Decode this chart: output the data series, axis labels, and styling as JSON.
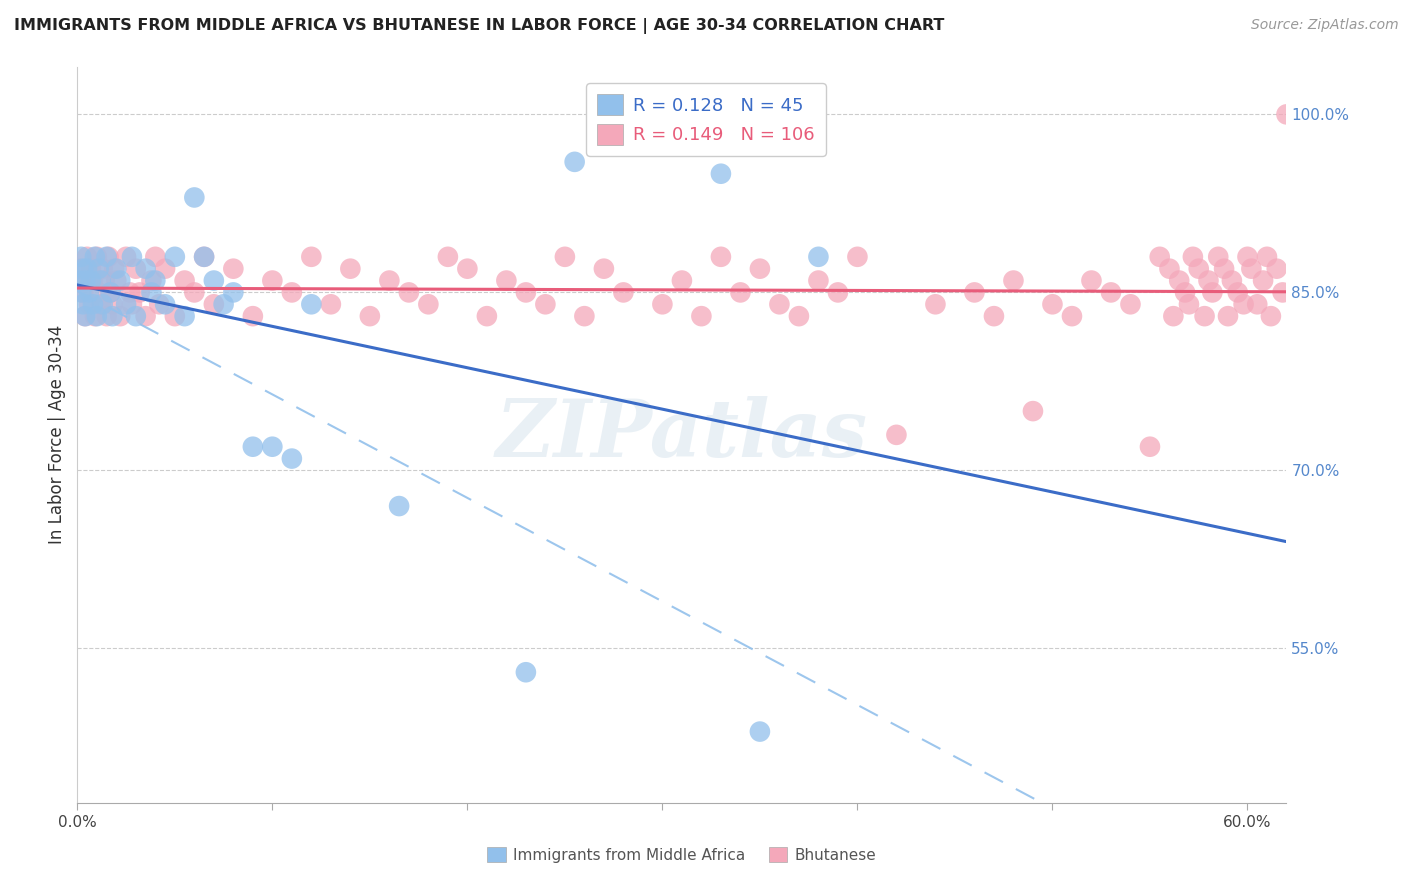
{
  "title": "IMMIGRANTS FROM MIDDLE AFRICA VS BHUTANESE IN LABOR FORCE | AGE 30-34 CORRELATION CHART",
  "source": "Source: ZipAtlas.com",
  "ylabel": "In Labor Force | Age 30-34",
  "blue_R": 0.128,
  "blue_N": 45,
  "pink_R": 0.149,
  "pink_N": 106,
  "blue_color": "#92C0EB",
  "pink_color": "#F4A8BA",
  "blue_line_color": "#3B6CC7",
  "pink_line_color": "#E85C7A",
  "blue_dashed_color": "#92C0EB",
  "legend_label_blue": "Immigrants from Middle Africa",
  "legend_label_pink": "Bhutanese",
  "ytick_vals": [
    0.55,
    0.7,
    0.85,
    1.0
  ],
  "ytick_labels": [
    "55.0%",
    "70.0%",
    "85.0%",
    "100.0%"
  ],
  "xtick_vals": [
    0.0,
    0.1,
    0.2,
    0.3,
    0.4,
    0.5,
    0.6
  ],
  "xtick_labels": [
    "0.0%",
    "",
    "",
    "",
    "",
    "",
    "60.0%"
  ],
  "xlim": [
    0.0,
    0.62
  ],
  "ylim": [
    0.42,
    1.04
  ],
  "watermark_text": "ZIPatlas",
  "background_color": "#ffffff",
  "blue_x": [
    0.001,
    0.002,
    0.002,
    0.003,
    0.003,
    0.004,
    0.004,
    0.005,
    0.006,
    0.007,
    0.008,
    0.009,
    0.01,
    0.011,
    0.012,
    0.013,
    0.015,
    0.017,
    0.018,
    0.02,
    0.022,
    0.025,
    0.028,
    0.03,
    0.035,
    0.038,
    0.04,
    0.045,
    0.05,
    0.055,
    0.06,
    0.065,
    0.07,
    0.075,
    0.08,
    0.09,
    0.1,
    0.11,
    0.12,
    0.165,
    0.23,
    0.255,
    0.33,
    0.35,
    0.38
  ],
  "blue_y": [
    0.86,
    0.85,
    0.88,
    0.84,
    0.87,
    0.86,
    0.83,
    0.87,
    0.85,
    0.86,
    0.84,
    0.88,
    0.83,
    0.87,
    0.86,
    0.84,
    0.88,
    0.85,
    0.83,
    0.87,
    0.86,
    0.84,
    0.88,
    0.83,
    0.87,
    0.85,
    0.86,
    0.84,
    0.88,
    0.83,
    0.93,
    0.88,
    0.86,
    0.84,
    0.85,
    0.72,
    0.72,
    0.71,
    0.84,
    0.67,
    0.53,
    0.96,
    0.95,
    0.48,
    0.88
  ],
  "pink_x": [
    0.001,
    0.002,
    0.003,
    0.004,
    0.005,
    0.006,
    0.007,
    0.008,
    0.009,
    0.01,
    0.011,
    0.012,
    0.013,
    0.014,
    0.015,
    0.016,
    0.017,
    0.018,
    0.019,
    0.02,
    0.022,
    0.025,
    0.027,
    0.028,
    0.03,
    0.032,
    0.035,
    0.038,
    0.04,
    0.042,
    0.045,
    0.05,
    0.055,
    0.06,
    0.065,
    0.07,
    0.08,
    0.09,
    0.1,
    0.11,
    0.12,
    0.13,
    0.14,
    0.15,
    0.16,
    0.17,
    0.18,
    0.19,
    0.2,
    0.21,
    0.22,
    0.23,
    0.24,
    0.25,
    0.26,
    0.27,
    0.28,
    0.3,
    0.31,
    0.32,
    0.33,
    0.34,
    0.35,
    0.36,
    0.37,
    0.38,
    0.39,
    0.4,
    0.42,
    0.44,
    0.46,
    0.47,
    0.48,
    0.49,
    0.5,
    0.51,
    0.52,
    0.53,
    0.54,
    0.55,
    0.555,
    0.56,
    0.562,
    0.565,
    0.568,
    0.57,
    0.572,
    0.575,
    0.578,
    0.58,
    0.582,
    0.585,
    0.588,
    0.59,
    0.592,
    0.595,
    0.598,
    0.6,
    0.602,
    0.605,
    0.608,
    0.61,
    0.612,
    0.615,
    0.618,
    0.62
  ],
  "pink_y": [
    0.87,
    0.86,
    0.85,
    0.83,
    0.88,
    0.84,
    0.87,
    0.86,
    0.83,
    0.88,
    0.85,
    0.84,
    0.87,
    0.86,
    0.83,
    0.88,
    0.85,
    0.84,
    0.87,
    0.86,
    0.83,
    0.88,
    0.85,
    0.84,
    0.87,
    0.85,
    0.83,
    0.86,
    0.88,
    0.84,
    0.87,
    0.83,
    0.86,
    0.85,
    0.88,
    0.84,
    0.87,
    0.83,
    0.86,
    0.85,
    0.88,
    0.84,
    0.87,
    0.83,
    0.86,
    0.85,
    0.84,
    0.88,
    0.87,
    0.83,
    0.86,
    0.85,
    0.84,
    0.88,
    0.83,
    0.87,
    0.85,
    0.84,
    0.86,
    0.83,
    0.88,
    0.85,
    0.87,
    0.84,
    0.83,
    0.86,
    0.85,
    0.88,
    0.73,
    0.84,
    0.85,
    0.83,
    0.86,
    0.75,
    0.84,
    0.83,
    0.86,
    0.85,
    0.84,
    0.72,
    0.88,
    0.87,
    0.83,
    0.86,
    0.85,
    0.84,
    0.88,
    0.87,
    0.83,
    0.86,
    0.85,
    0.88,
    0.87,
    0.83,
    0.86,
    0.85,
    0.84,
    0.88,
    0.87,
    0.84,
    0.86,
    0.88,
    0.83,
    0.87,
    0.85,
    1.0
  ]
}
